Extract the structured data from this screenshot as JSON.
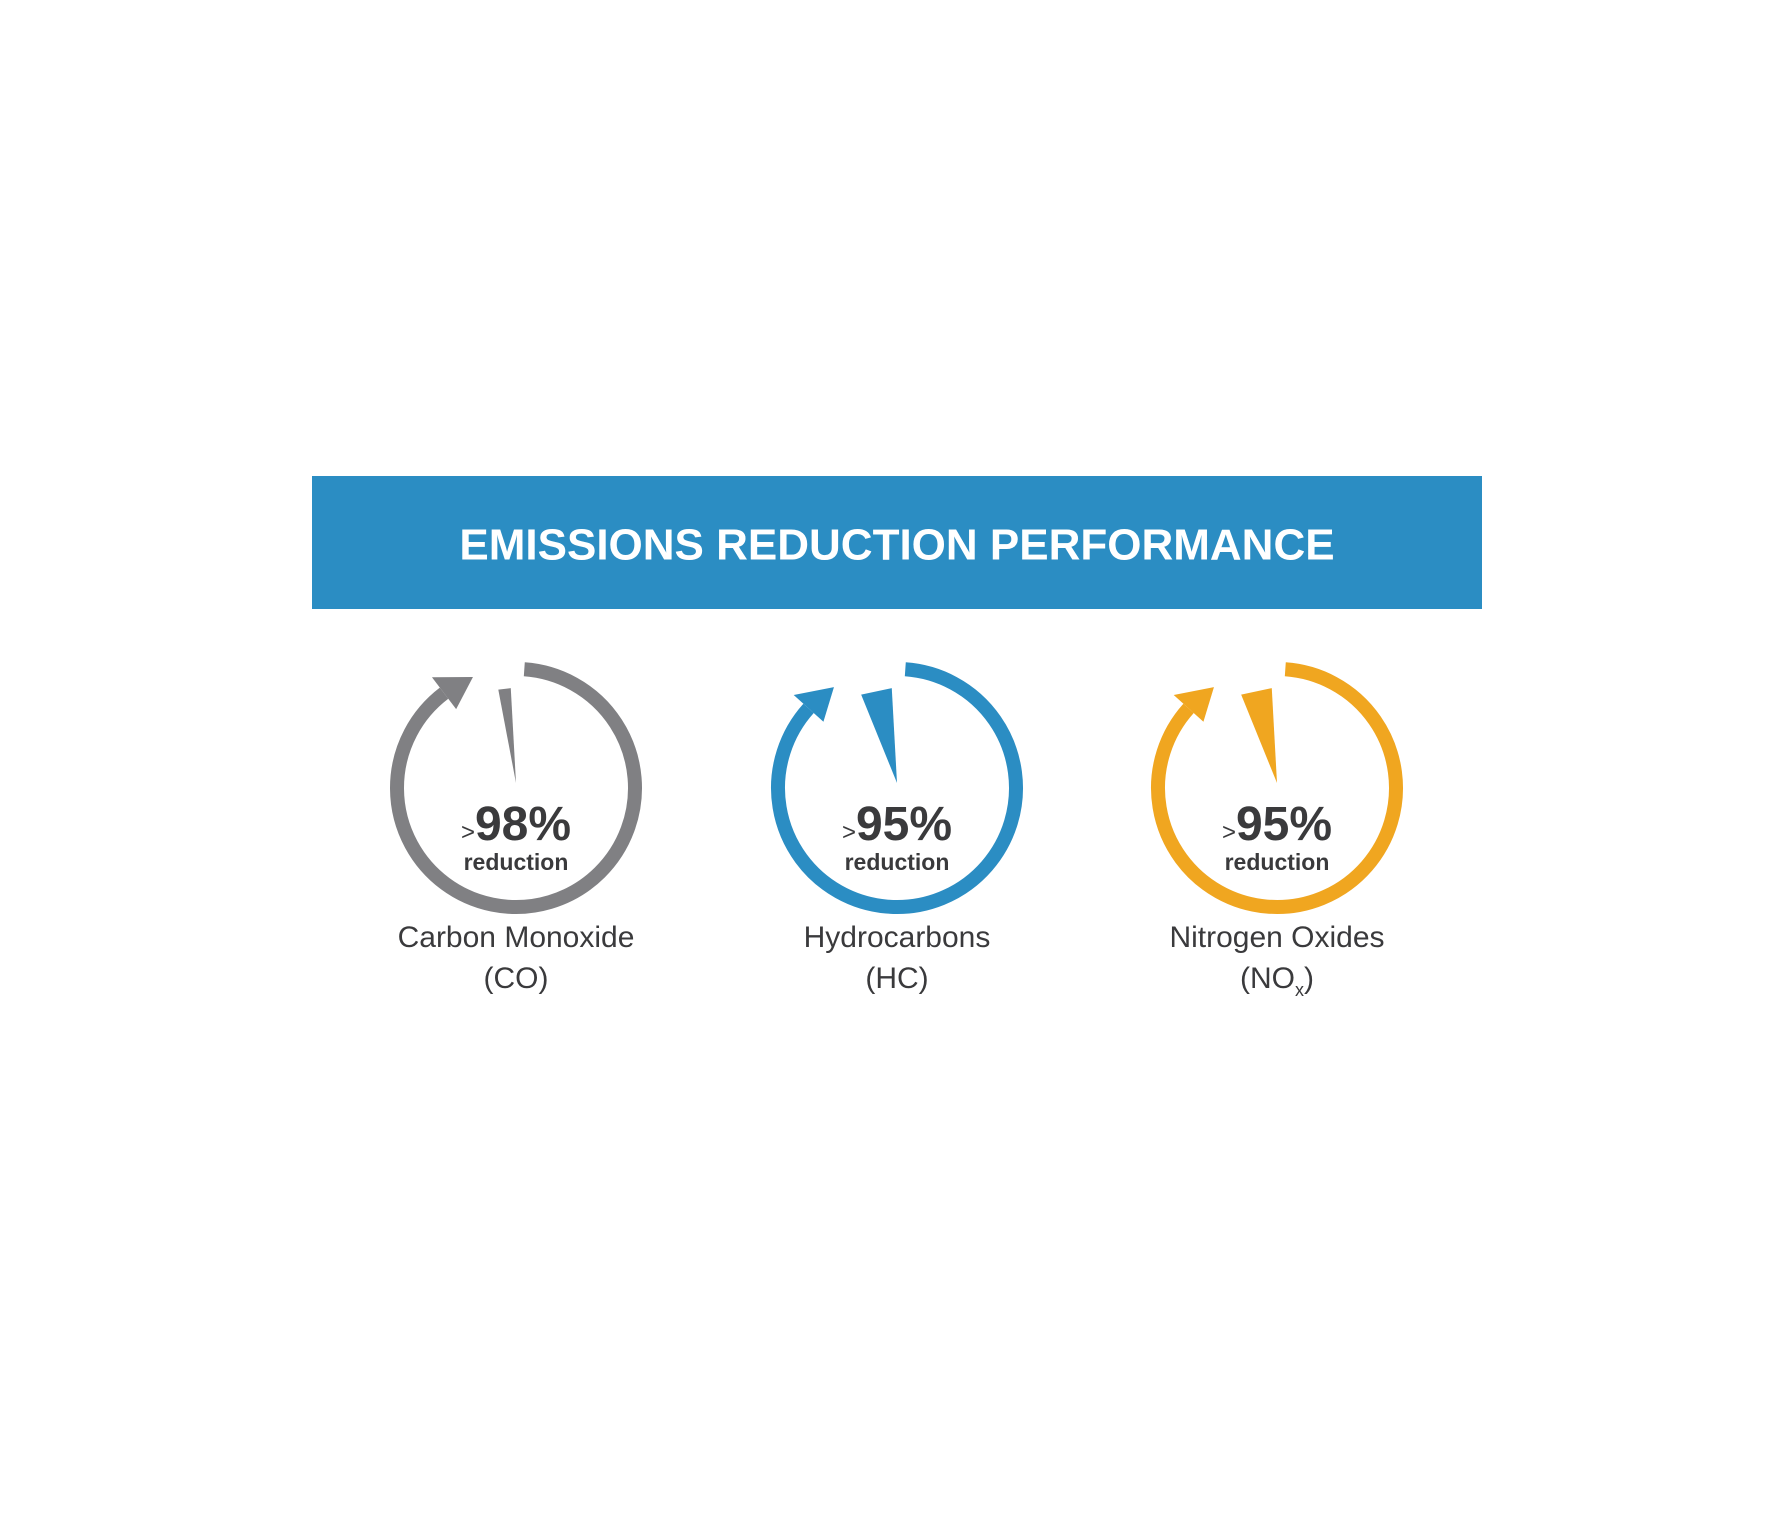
{
  "title": "EMISSIONS REDUCTION PERFORMANCE",
  "items": [
    {
      "prefix": ">",
      "value_label": "98%",
      "value": 98,
      "caption": "reduction",
      "name": "Carbon Monoxide",
      "formula": "(CO)",
      "color": "#808083"
    },
    {
      "prefix": ">",
      "value_label": "95%",
      "value": 95,
      "caption": "reduction",
      "name": "Hydrocarbons",
      "formula": "(HC)",
      "color": "#2b8dc3"
    },
    {
      "prefix": ">",
      "value_label": "95%",
      "value": 95,
      "caption": "reduction",
      "name": "Nitrogen Oxides",
      "formula": "(NO",
      "formula_sub": "x",
      "formula_end": ")",
      "color": "#f0a620"
    }
  ],
  "banner_color": "#2b8dc3"
}
